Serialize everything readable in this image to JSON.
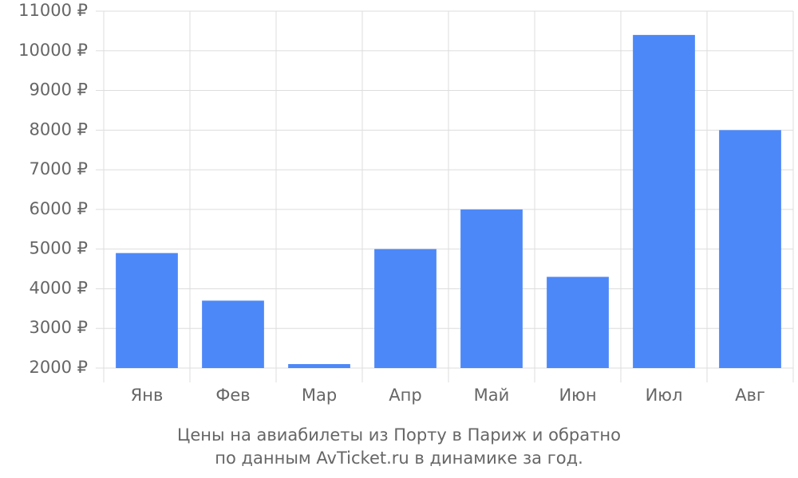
{
  "chart_data": {
    "type": "bar",
    "title": "Цены на авиабилеты из Порту в Париж и обратно",
    "subtitle": "по данным AvTicket.ru в динамике за год.",
    "categories": [
      "Янв",
      "Фев",
      "Мар",
      "Апр",
      "Май",
      "Июн",
      "Июл",
      "Авг"
    ],
    "values": [
      4900,
      3700,
      2100,
      5000,
      6000,
      4300,
      10400,
      8000
    ],
    "color": "#4d88f8",
    "ylim": [
      2000,
      11000
    ],
    "yticks": [
      {
        "value": 2000,
        "label": "2000 ₽"
      },
      {
        "value": 3000,
        "label": "3000 ₽"
      },
      {
        "value": 4000,
        "label": "4000 ₽"
      },
      {
        "value": 5000,
        "label": "5000 ₽"
      },
      {
        "value": 6000,
        "label": "6000 ₽"
      },
      {
        "value": 7000,
        "label": "7000 ₽"
      },
      {
        "value": 8000,
        "label": "8000 ₽"
      },
      {
        "value": 9000,
        "label": "9000 ₽"
      },
      {
        "value": 10000,
        "label": "10000 ₽"
      },
      {
        "value": 11000,
        "label": "11000 ₽"
      }
    ],
    "grid": true
  }
}
